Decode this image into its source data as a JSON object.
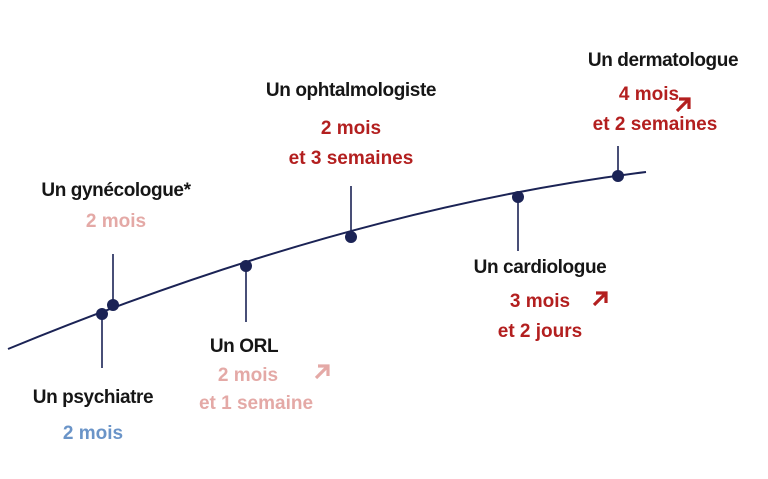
{
  "colors": {
    "axis": "#1b2355",
    "dot": "#1b2355",
    "neutral": "#6a94c8",
    "light_increase": "#e4a9a6",
    "strong_increase": "#b31f1f",
    "name": "#161616"
  },
  "specialists": [
    {
      "name": "Un psychiatre",
      "delay_line1": "2 mois",
      "delay_line2": "",
      "tone": "neutral",
      "arrow": false
    },
    {
      "name": "Un gynécologue*",
      "delay_line1": "2 mois",
      "delay_line2": "",
      "tone": "light_increase",
      "arrow": false
    },
    {
      "name": "Un ORL",
      "delay_line1": "2 mois",
      "delay_line2": "et 1 semaine",
      "tone": "light_increase",
      "arrow": true,
      "arrow_icon": "arrow-up-right-icon"
    },
    {
      "name": "Un ophtalmologiste",
      "delay_line1": "2 mois",
      "delay_line2": "et 3 semaines",
      "tone": "strong_increase",
      "arrow": false
    },
    {
      "name": "Un cardiologue",
      "delay_line1": "3 mois",
      "delay_line2": "et 2 jours",
      "tone": "strong_increase",
      "arrow": true,
      "arrow_icon": "arrow-up-right-icon"
    },
    {
      "name": "Un dermatologue",
      "delay_line1": "4 mois",
      "delay_line2": "et 2 semaines",
      "tone": "strong_increase",
      "arrow": true,
      "arrow_icon": "arrow-up-right-icon"
    }
  ]
}
